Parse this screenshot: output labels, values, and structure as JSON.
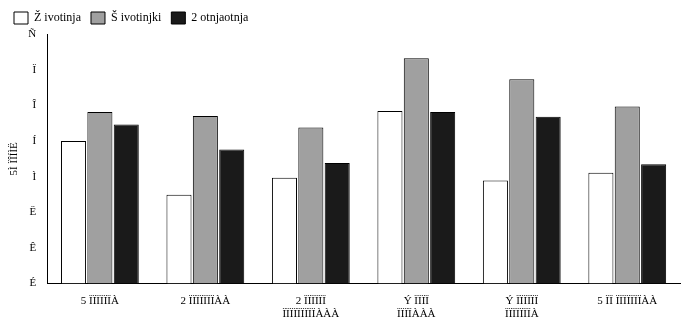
{
  "chart_data": {
    "type": "bar",
    "y_label": "5Ì ÏÎÍÌË",
    "categories": [
      "5 ÏÏÏÏÏÏÀ",
      "2 ÏÏÏÏÏÏÏÀÀ",
      "2 ÏÏÏÏÏÏ\nÏÏÏÏÏÏÏÏÏÀÀÀ",
      "Ý ÏÏÏÏ\nÏÏÏÏÀÀÀ",
      "Ý ÏÏÏÏÏÏ\nÏÏÏÏÏÏÏÀ",
      "5 ÏÏ ÏÏÏÏÏÏÏÀÀ"
    ],
    "series": [
      {
        "name": "Ž ivotinja",
        "color": "#ffffff",
        "values": [
          4.0,
          2.49,
          2.97,
          4.84,
          2.89,
          3.11
        ]
      },
      {
        "name": "Š ivotinjki",
        "color": "#a0a0a0",
        "values": [
          4.81,
          4.7,
          4.38,
          6.32,
          5.73,
          4.97
        ]
      },
      {
        "name": "2 otnjaotnja",
        "color": "#1a1a1a",
        "values": [
          4.46,
          3.76,
          3.38,
          4.81,
          4.68,
          3.35
        ]
      }
    ],
    "ylim": [
      0,
      7
    ],
    "yticks": [
      {
        "value": 0,
        "label": "É"
      },
      {
        "value": 1,
        "label": "Ê"
      },
      {
        "value": 2,
        "label": "Ë"
      },
      {
        "value": 3,
        "label": "Ì"
      },
      {
        "value": 4,
        "label": "Í"
      },
      {
        "value": 5,
        "label": "Î"
      },
      {
        "value": 6,
        "label": "Ï"
      },
      {
        "value": 7,
        "label": "Ñ"
      }
    ],
    "grid": false,
    "legend": "top-left"
  }
}
